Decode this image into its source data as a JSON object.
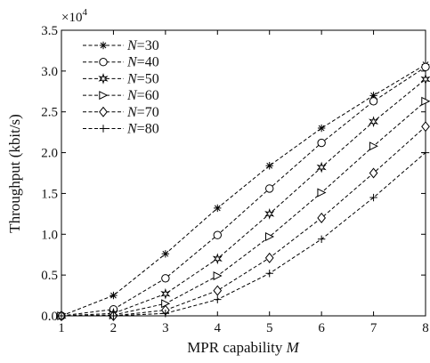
{
  "chart_data": {
    "type": "line",
    "xlabel": "MPR capability",
    "xlabel_var": "M",
    "ylabel": "Throughput (kbit/s)",
    "y_multiplier": "×10",
    "y_exponent": "4",
    "xlim": [
      1,
      8
    ],
    "ylim": [
      0,
      3.5
    ],
    "x_ticks": [
      "1",
      "2",
      "3",
      "4",
      "5",
      "6",
      "7",
      "8"
    ],
    "y_ticks": [
      "0.0",
      "0.5",
      "1.0",
      "1.5",
      "2.0",
      "2.5",
      "3.0",
      "3.5"
    ],
    "grid": false,
    "legend_position": "top-left",
    "x": [
      1,
      2,
      3,
      4,
      5,
      6,
      7,
      8
    ],
    "series": [
      {
        "name": "N=30",
        "var": "N",
        "value": "=30",
        "marker": "asterisk",
        "values": [
          0.0,
          0.25,
          0.76,
          1.32,
          1.84,
          2.3,
          2.7,
          3.08
        ]
      },
      {
        "name": "N=40",
        "var": "N",
        "value": "=40",
        "marker": "circle",
        "values": [
          0.0,
          0.08,
          0.46,
          0.99,
          1.56,
          2.12,
          2.63,
          3.05
        ]
      },
      {
        "name": "N=50",
        "var": "N",
        "value": "=50",
        "marker": "star",
        "values": [
          0.0,
          0.03,
          0.27,
          0.7,
          1.25,
          1.82,
          2.38,
          2.9
        ]
      },
      {
        "name": "N=60",
        "var": "N",
        "value": "=60",
        "marker": "triangle-right",
        "values": [
          0.0,
          0.01,
          0.15,
          0.49,
          0.97,
          1.51,
          2.08,
          2.63
        ]
      },
      {
        "name": "N=70",
        "var": "N",
        "value": "=70",
        "marker": "diamond",
        "values": [
          0.0,
          0.0,
          0.07,
          0.31,
          0.71,
          1.2,
          1.75,
          2.32
        ]
      },
      {
        "name": "N=80",
        "var": "N",
        "value": "=80",
        "marker": "plus",
        "values": [
          0.0,
          0.0,
          0.03,
          0.2,
          0.52,
          0.94,
          1.45,
          2.0
        ]
      }
    ]
  }
}
